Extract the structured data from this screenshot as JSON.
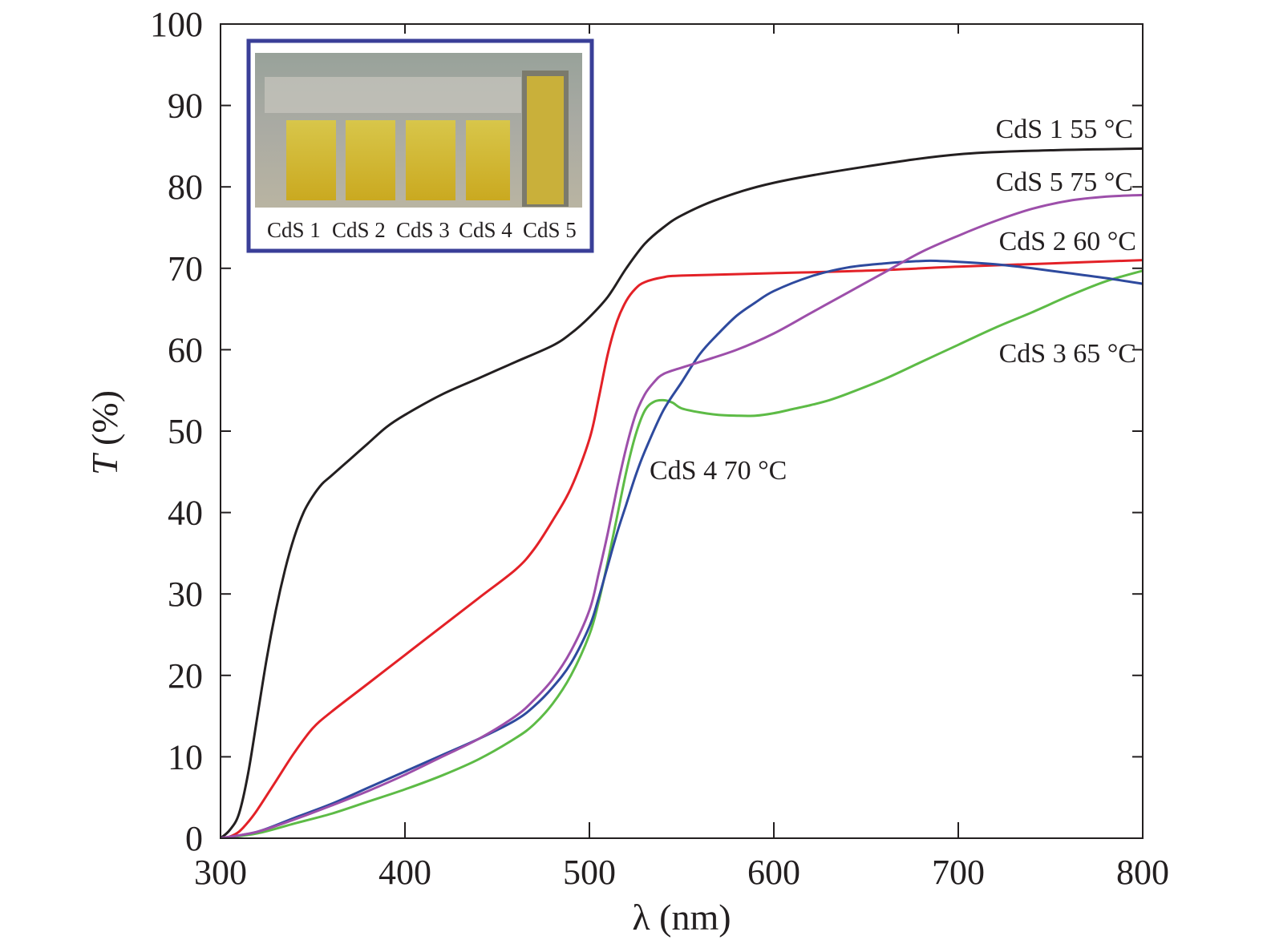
{
  "chart_data": {
    "type": "line",
    "title": "",
    "xlabel": "λ (nm)",
    "ylabel_italic": "T",
    "ylabel_rest": " (%)",
    "xlim": [
      300,
      800
    ],
    "ylim": [
      0,
      100
    ],
    "xticks": [
      300,
      400,
      500,
      600,
      700,
      800
    ],
    "yticks": [
      0,
      10,
      20,
      30,
      40,
      50,
      60,
      70,
      80,
      90,
      100
    ],
    "grid": false,
    "legend": "inline labels at right",
    "series": [
      {
        "name": "CdS 1",
        "label": "CdS 1  55 °C",
        "color": "#231f20",
        "x": [
          300,
          305,
          310,
          315,
          320,
          325,
          330,
          335,
          340,
          345,
          350,
          355,
          360,
          370,
          380,
          390,
          400,
          420,
          440,
          460,
          480,
          490,
          500,
          510,
          520,
          530,
          540,
          550,
          570,
          600,
          650,
          700,
          750,
          800
        ],
        "y": [
          0,
          1,
          3,
          8,
          15,
          22,
          28,
          33,
          37,
          40,
          42,
          43.5,
          44.5,
          46.5,
          48.5,
          50.5,
          52,
          54.5,
          56.5,
          58.5,
          60.5,
          62,
          64,
          66.5,
          70,
          73,
          75,
          76.5,
          78.5,
          80.5,
          82.5,
          84,
          84.5,
          84.7
        ]
      },
      {
        "name": "CdS 2",
        "label": "CdS 2  60 °C",
        "color": "#e32127",
        "x": [
          300,
          305,
          310,
          315,
          320,
          330,
          340,
          350,
          360,
          380,
          400,
          420,
          440,
          460,
          470,
          480,
          490,
          500,
          505,
          510,
          515,
          520,
          525,
          530,
          540,
          550,
          600,
          650,
          700,
          750,
          800
        ],
        "y": [
          0,
          0.2,
          0.8,
          2,
          3.5,
          7,
          10.5,
          13.5,
          15.5,
          19,
          22.5,
          26,
          29.5,
          33,
          35.5,
          39,
          43,
          49,
          54,
          59.5,
          63.5,
          66,
          67.5,
          68.3,
          68.9,
          69.1,
          69.4,
          69.7,
          70.2,
          70.6,
          71
        ]
      },
      {
        "name": "CdS 3",
        "label": "CdS 3  65 °C",
        "color": "#5dbb46",
        "x": [
          300,
          320,
          340,
          360,
          380,
          400,
          420,
          440,
          460,
          470,
          480,
          490,
          500,
          505,
          510,
          515,
          520,
          525,
          530,
          535,
          540,
          545,
          550,
          560,
          570,
          580,
          590,
          600,
          610,
          620,
          630,
          640,
          660,
          680,
          700,
          720,
          740,
          760,
          780,
          800
        ],
        "y": [
          0,
          0.6,
          1.8,
          3,
          4.5,
          6,
          7.7,
          9.7,
          12.3,
          14,
          16.5,
          20,
          25,
          29,
          34,
          39.5,
          45,
          49.5,
          52.5,
          53.6,
          53.8,
          53.5,
          52.8,
          52.3,
          52,
          51.9,
          51.9,
          52.2,
          52.7,
          53.2,
          53.8,
          54.6,
          56.4,
          58.5,
          60.6,
          62.7,
          64.6,
          66.6,
          68.4,
          69.7
        ]
      },
      {
        "name": "CdS 4",
        "label": "CdS 4  70 °C",
        "color": "#2e4a9e",
        "x": [
          300,
          320,
          340,
          360,
          380,
          400,
          420,
          440,
          460,
          470,
          480,
          490,
          500,
          505,
          510,
          515,
          520,
          525,
          530,
          540,
          550,
          560,
          570,
          580,
          590,
          600,
          620,
          640,
          660,
          680,
          690,
          700,
          720,
          740,
          760,
          780,
          800
        ],
        "y": [
          0,
          0.8,
          2.5,
          4.2,
          6.2,
          8.2,
          10.2,
          12.2,
          14.5,
          16.2,
          18.5,
          21.5,
          26,
          29.5,
          33.5,
          37.5,
          41,
          44.5,
          47.5,
          52.5,
          56,
          59.5,
          62,
          64.2,
          65.8,
          67.2,
          69,
          70.1,
          70.6,
          70.9,
          70.9,
          70.8,
          70.5,
          70,
          69.4,
          68.8,
          68.1
        ]
      },
      {
        "name": "CdS 5",
        "label": "CdS 5  75 °C",
        "color": "#9d4faa",
        "x": [
          300,
          320,
          340,
          360,
          380,
          400,
          420,
          440,
          460,
          470,
          480,
          490,
          500,
          505,
          510,
          515,
          520,
          525,
          530,
          535,
          540,
          550,
          560,
          580,
          600,
          620,
          640,
          660,
          680,
          700,
          720,
          740,
          760,
          780,
          800
        ],
        "y": [
          0,
          0.8,
          2.3,
          4,
          5.8,
          7.8,
          10,
          12.2,
          15,
          17,
          19.5,
          23,
          28,
          32.5,
          37.5,
          43,
          48,
          52,
          54.5,
          56,
          57,
          57.8,
          58.5,
          60,
          62,
          64.5,
          67,
          69.5,
          72,
          74,
          75.8,
          77.3,
          78.3,
          78.8,
          79
        ]
      }
    ],
    "annotations": [
      {
        "series": "CdS 1",
        "text": "CdS 1  55 °C"
      },
      {
        "series": "CdS 5",
        "text": "CdS 5  75 °C"
      },
      {
        "series": "CdS 2",
        "text": "CdS 2  60 °C"
      },
      {
        "series": "CdS 3",
        "text": "CdS 3  65 °C"
      },
      {
        "series": "CdS 4",
        "text": "CdS 4  70 °C"
      }
    ],
    "inset": {
      "description": "photo of CdS film samples",
      "border_color": "#3a3f98",
      "labels": [
        "CdS 1",
        "CdS 2",
        "CdS 3",
        "CdS 4",
        "CdS 5"
      ]
    }
  }
}
